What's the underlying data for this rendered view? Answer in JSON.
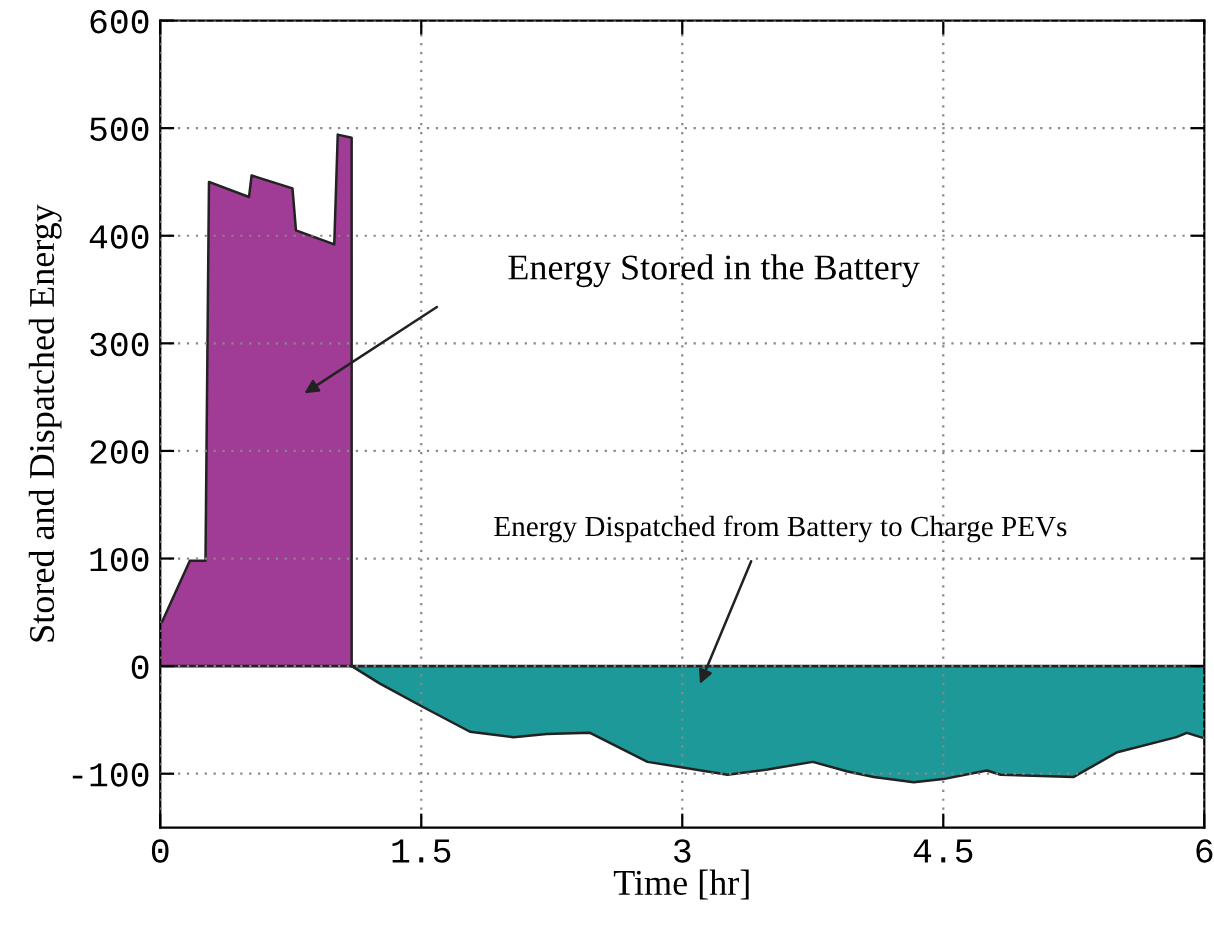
{
  "chart_data": {
    "type": "area",
    "xlabel": "Time [hr]",
    "ylabel": "Stored and Dispatched Energy",
    "series": [
      {
        "color": "#a03c96",
        "x": [
          0,
          0.01,
          0.17,
          0.26,
          0.28,
          0.51,
          0.525,
          0.76,
          0.78,
          1.0,
          1.02,
          1.1,
          1.1
        ],
        "values": [
          41,
          41,
          98,
          98,
          450,
          436,
          456,
          444,
          405,
          392,
          494,
          491,
          0
        ]
      },
      {
        "color": "#1e9999",
        "x": [
          1.1,
          1.26,
          1.51,
          1.78,
          2.03,
          2.22,
          2.47,
          2.8,
          3.26,
          3.49,
          3.75,
          3.95,
          4.1,
          4.33,
          4.5,
          4.75,
          4.83,
          5.25,
          5.5,
          5.84,
          5.9,
          6
        ],
        "values": [
          0,
          -16,
          -38,
          -61,
          -66,
          -63,
          -62,
          -89,
          -101,
          -96,
          -89,
          -98,
          -103,
          -108,
          -105,
          -97,
          -101,
          -103,
          -80,
          -66,
          -62,
          -67
        ]
      }
    ],
    "annotations": [
      "Energy Stored in the Battery",
      "Energy Dispatched from Battery to Charge PEVs"
    ],
    "xlim": [
      0,
      6
    ],
    "ylim": [
      -150,
      600
    ],
    "xticks": [
      0,
      1.5,
      3,
      4.5,
      6
    ],
    "yticks": [
      -100,
      0,
      100,
      200,
      300,
      400,
      500,
      600
    ],
    "grid": true,
    "legend": false
  }
}
